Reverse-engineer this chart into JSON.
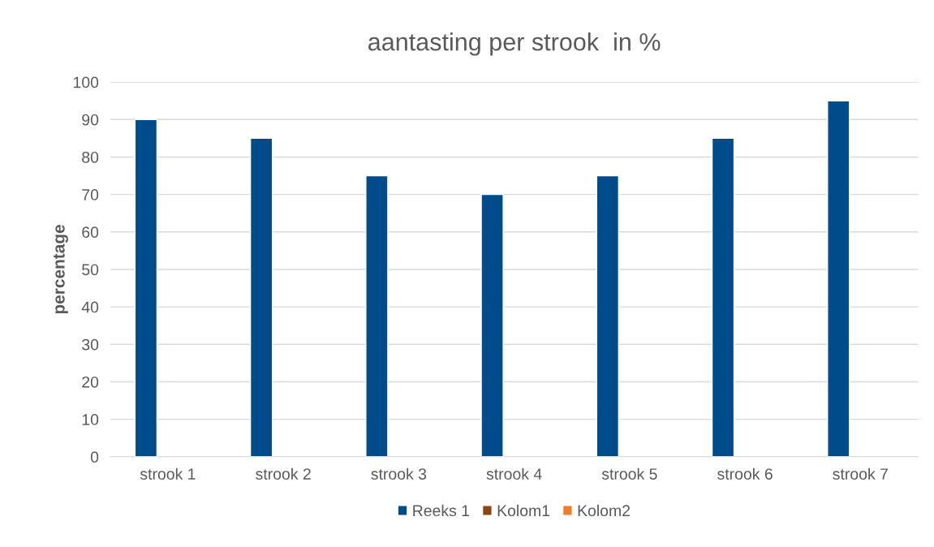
{
  "chart_data": {
    "type": "bar",
    "title": "aantasting per strook  in %",
    "ylabel": "percentage",
    "categories": [
      "strook 1",
      "strook 2",
      "strook 3",
      "strook 4",
      "strook 5",
      "strook 6",
      "strook 7"
    ],
    "series": [
      {
        "name": "Reeks 1",
        "color": "#004c8a",
        "values": [
          90,
          85,
          75,
          70,
          75,
          85,
          95
        ]
      },
      {
        "name": "Kolom1",
        "color": "#8b4513",
        "values": [
          null,
          null,
          null,
          null,
          null,
          null,
          null
        ]
      },
      {
        "name": "Kolom2",
        "color": "#ed7d31",
        "values": [
          null,
          null,
          null,
          null,
          null,
          null,
          null
        ]
      }
    ],
    "ylim": [
      0,
      100
    ],
    "yticks": [
      0,
      10,
      20,
      30,
      40,
      50,
      60,
      70,
      80,
      90,
      100
    ],
    "grid": "y",
    "legend": "bottom"
  }
}
